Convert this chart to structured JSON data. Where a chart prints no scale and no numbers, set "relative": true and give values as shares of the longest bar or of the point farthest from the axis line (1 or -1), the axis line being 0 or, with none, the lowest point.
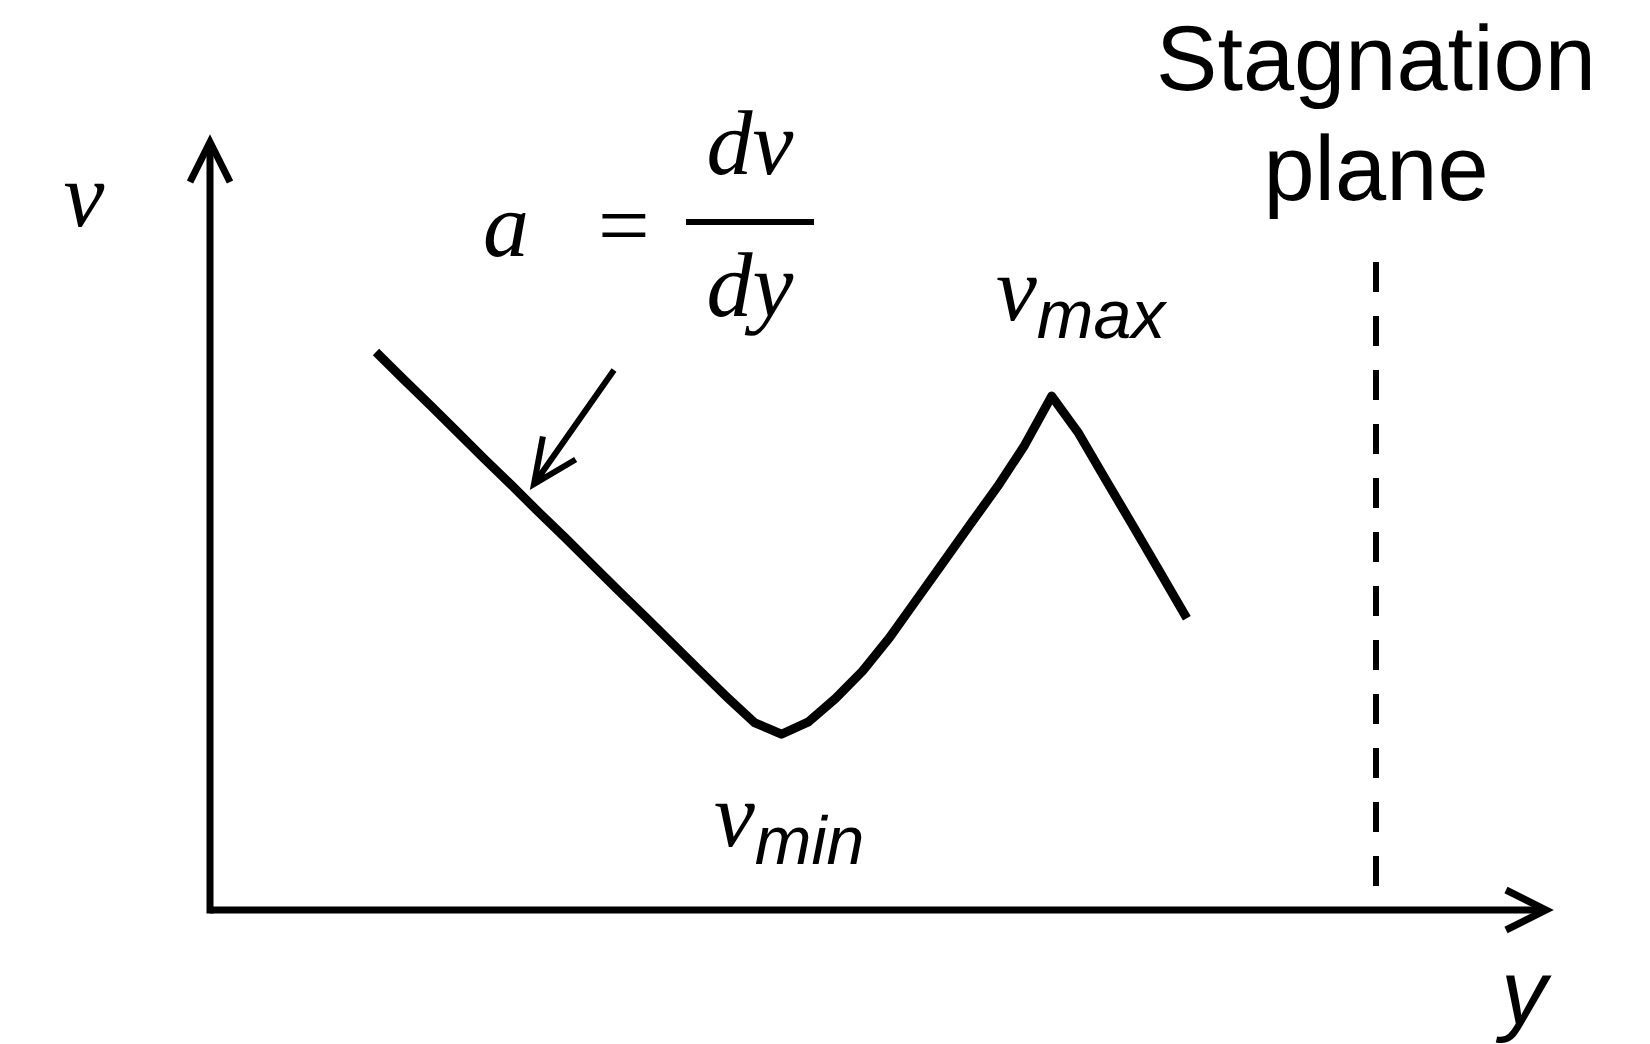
{
  "chart_data": {
    "type": "line",
    "xlabel": "y",
    "ylabel": "v",
    "relative": true,
    "categories": [
      null,
      null,
      null,
      null,
      null,
      null,
      null,
      null,
      null,
      null,
      null,
      null,
      null,
      null,
      null,
      null,
      null,
      null,
      null,
      null,
      null,
      null,
      null,
      null,
      null,
      null,
      null,
      null,
      null,
      null,
      null,
      null,
      null,
      null,
      null,
      null,
      null,
      null,
      null,
      null,
      null,
      null,
      null,
      null,
      null,
      null,
      null,
      null,
      null,
      null
    ],
    "series": [
      {
        "color": "#000000",
        "values": [
          null,
          null,
          null,
          null,
          null,
          null,
          1,
          0.952,
          0.905,
          0.857,
          0.809,
          0.762,
          0.714,
          0.667,
          0.619,
          0.571,
          0.524,
          0.476,
          0.428,
          0.381,
          0.336,
          0.315,
          0.337,
          0.379,
          0.428,
          0.488,
          0.556,
          0.624,
          0.692,
          0.759,
          0.833,
          0.921,
          0.854,
          0.771,
          0.689,
          0.606,
          0.523,
          null,
          null,
          null,
          null,
          null,
          null,
          null,
          null,
          null,
          null,
          null,
          null,
          null
        ]
      }
    ],
    "annotations": [
      "Stagnation plane",
      "a = dv/dy",
      "v$_{max}$",
      "v$_{min}$"
    ]
  }
}
